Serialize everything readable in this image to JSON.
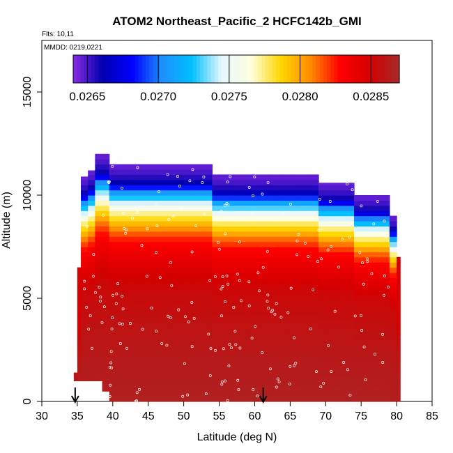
{
  "chart_data": {
    "type": "heatmap",
    "title": "ATOM2 Northeast_Pacific_2 HCFC142b_GMI",
    "flights_label": "Flts: 10,11",
    "dates_label": "MMDD: 0219,0221",
    "xlabel": "Latitude (deg N)",
    "ylabel": "Altitude (m)",
    "xlim": [
      30,
      85
    ],
    "ylim": [
      0,
      17500
    ],
    "x_ticks": [
      "30",
      "35",
      "40",
      "45",
      "50",
      "55",
      "60",
      "65",
      "70",
      "75",
      "80",
      "85"
    ],
    "y_ticks": [
      "0",
      "5000",
      "10000",
      "15000"
    ],
    "colorbar": {
      "range": [
        0.0264,
        0.0287
      ],
      "tick_labels": [
        "0.0265",
        "0.0270",
        "0.0275",
        "0.0280",
        "0.0285"
      ],
      "tick_values": [
        0.0265,
        0.027,
        0.0275,
        0.028,
        0.0285
      ],
      "colors": [
        "#8a2be2",
        "#0000b0",
        "#0000ff",
        "#1e90ff",
        "#00bfff",
        "#e6f7ff",
        "#ffffe0",
        "#ffd700",
        "#ff8c00",
        "#ff0000",
        "#d40000",
        "#a52a2a"
      ]
    },
    "profile_base_value": 0.02855,
    "profile": [
      {
        "alt": 0,
        "value": 0.02865
      },
      {
        "alt": 2000,
        "value": 0.02862
      },
      {
        "alt": 4000,
        "value": 0.02858
      },
      {
        "alt": 6000,
        "value": 0.02852
      },
      {
        "alt": 7000,
        "value": 0.02842
      },
      {
        "alt": 8000,
        "value": 0.0283
      },
      {
        "alt": 8600,
        "value": 0.02812
      },
      {
        "alt": 9100,
        "value": 0.0279
      },
      {
        "alt": 9600,
        "value": 0.0277
      },
      {
        "alt": 10100,
        "value": 0.0274
      },
      {
        "alt": 10600,
        "value": 0.02705
      },
      {
        "alt": 11100,
        "value": 0.0266
      },
      {
        "alt": 11600,
        "value": 0.0265
      },
      {
        "alt": 12000,
        "value": 0.02645
      }
    ],
    "columns": [
      {
        "lat": 34.5,
        "top": 1400,
        "bottom": 1000
      },
      {
        "lat": 35.0,
        "top": 6500,
        "bottom": 1000
      },
      {
        "lat": 35.5,
        "top": 10900,
        "bottom": 1000
      },
      {
        "lat": 36.5,
        "top": 11200,
        "bottom": 1000
      },
      {
        "lat": 37.5,
        "top": 12000,
        "bottom": 1000
      },
      {
        "lat": 38.5,
        "top": 12000,
        "bottom": 500
      },
      {
        "lat": 39.5,
        "top": 11500,
        "bottom": 0
      },
      {
        "lat": 42.0,
        "top": 11500,
        "bottom": 0
      },
      {
        "lat": 50.0,
        "top": 11500,
        "bottom": 0
      },
      {
        "lat": 54.0,
        "top": 11000,
        "bottom": 0
      },
      {
        "lat": 60.0,
        "top": 11000,
        "bottom": 0
      },
      {
        "lat": 68.8,
        "top": 10600,
        "bottom": 0
      },
      {
        "lat": 74.0,
        "top": 10000,
        "bottom": 0
      },
      {
        "lat": 79.0,
        "top": 9000,
        "bottom": 0
      },
      {
        "lat": 79.8,
        "top": 7000,
        "bottom": 0
      },
      {
        "lat": 80.5,
        "top": 4500,
        "bottom": 0
      }
    ],
    "markers_lat": [
      34.7,
      61.2
    ]
  }
}
